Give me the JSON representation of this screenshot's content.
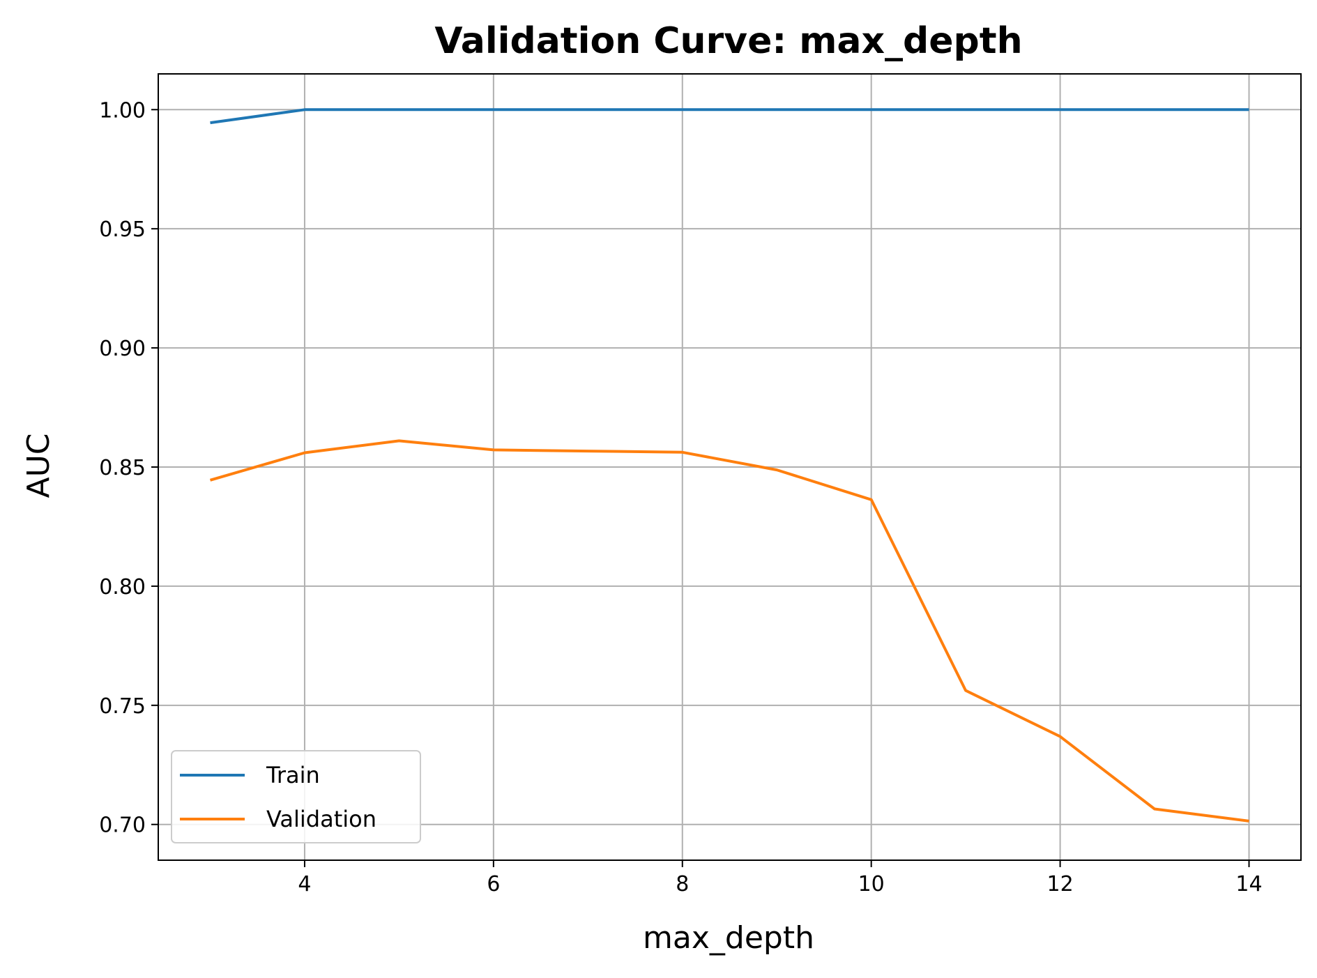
{
  "chart_data": {
    "type": "line",
    "title": "Validation Curve: max_depth",
    "xlabel": "max_depth",
    "ylabel": "AUC",
    "xlim": [
      2.45,
      14.55
    ],
    "ylim": [
      0.685,
      1.015
    ],
    "x_ticks": [
      4,
      6,
      8,
      10,
      12,
      14
    ],
    "x_tick_labels": [
      "4",
      "6",
      "8",
      "10",
      "12",
      "14"
    ],
    "y_ticks": [
      0.7,
      0.75,
      0.8,
      0.85,
      0.9,
      0.95,
      1.0
    ],
    "y_tick_labels": [
      "0.70",
      "0.75",
      "0.80",
      "0.85",
      "0.90",
      "0.95",
      "1.00"
    ],
    "grid": true,
    "legend_position": "lower-left",
    "x": [
      3,
      4,
      5,
      6,
      7,
      8,
      9,
      10,
      11,
      12,
      13,
      14
    ],
    "series": [
      {
        "name": "Train",
        "color": "#1f77b4",
        "values": [
          0.9945,
          1.0,
          1.0,
          1.0,
          1.0,
          1.0,
          1.0,
          1.0,
          1.0,
          1.0,
          1.0,
          1.0
        ]
      },
      {
        "name": "Validation",
        "color": "#ff7f0e",
        "values": [
          0.8445,
          0.856,
          0.861,
          0.8572,
          0.8567,
          0.8562,
          0.8488,
          0.8363,
          0.7562,
          0.7369,
          0.7065,
          0.7014
        ]
      }
    ]
  }
}
